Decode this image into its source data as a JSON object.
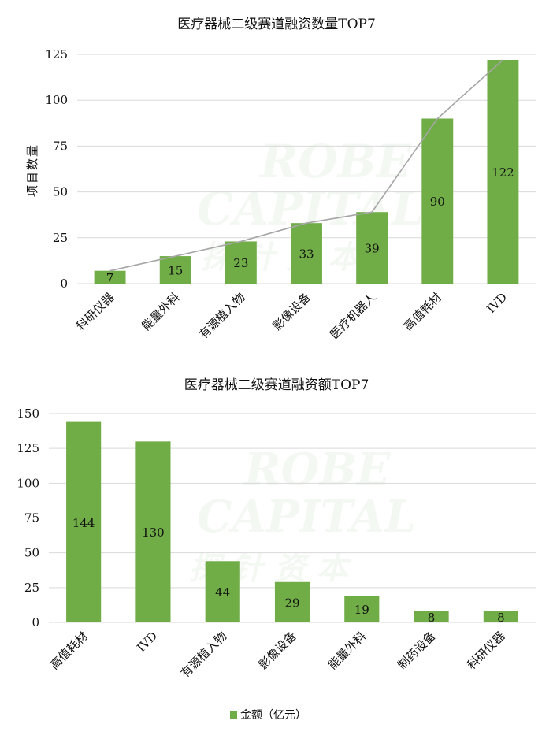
{
  "colors": {
    "bar": "#70ad47",
    "line": "#a6a6a6",
    "grid": "#d9d9d9",
    "watermark": "#8fbf8f"
  },
  "watermark": {
    "line1": "ROBE",
    "line2": "CAPITAL",
    "line3": "探 针 资 本"
  },
  "chart_data": [
    {
      "type": "bar",
      "title": "医疗器械二级赛道融资数量TOP7",
      "ylabel": "项目数量",
      "xlabel": "",
      "categories": [
        "科研仪器",
        "能量外科",
        "有源植入物",
        "影像设备",
        "医疗机器人",
        "高值耗材",
        "IVD"
      ],
      "values": [
        7,
        15,
        23,
        33,
        39,
        90,
        122
      ],
      "ylim": [
        0,
        125
      ],
      "yticks": [
        0,
        25,
        50,
        75,
        100,
        125
      ],
      "overlay_line": true,
      "grid": true
    },
    {
      "type": "bar",
      "title": "医疗器械二级赛道融资额TOP7",
      "ylabel": "",
      "xlabel": "",
      "categories": [
        "高值耗材",
        "IVD",
        "有源植入物",
        "影像设备",
        "能量外科",
        "制药设备",
        "科研仪器"
      ],
      "series": [
        {
          "name": "金额（亿元）",
          "values": [
            144,
            130,
            44,
            29,
            19,
            8,
            8
          ]
        }
      ],
      "ylim": [
        0,
        150
      ],
      "yticks": [
        0,
        25,
        50,
        75,
        100,
        125,
        150
      ],
      "grid": true,
      "legend": "bottom"
    }
  ]
}
